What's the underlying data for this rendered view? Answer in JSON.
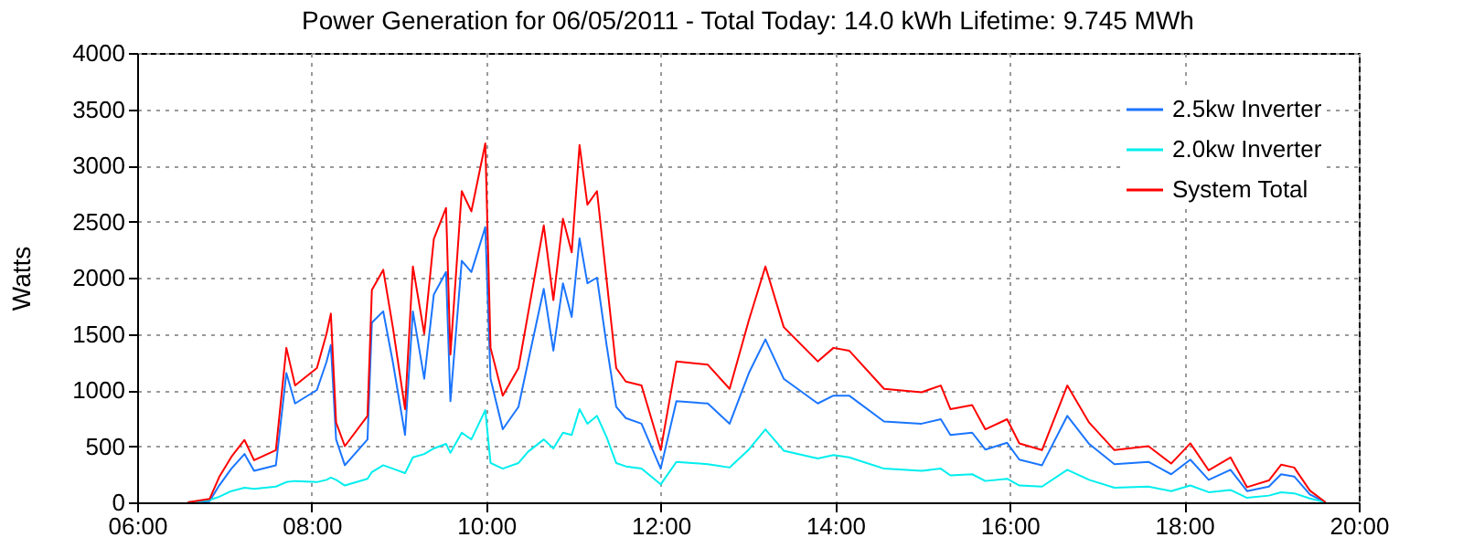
{
  "chart_data": {
    "type": "line",
    "title": "Power Generation for 06/05/2011 - Total Today: 14.0 kWh   Lifetime: 9.745 MWh",
    "ylabel": "Watts",
    "x": [
      6.58,
      6.83,
      6.94,
      7.08,
      7.23,
      7.34,
      7.59,
      7.71,
      7.81,
      8.06,
      8.17,
      8.22,
      8.28,
      8.38,
      8.64,
      8.69,
      8.82,
      8.93,
      9.07,
      9.16,
      9.29,
      9.4,
      9.54,
      9.59,
      9.72,
      9.83,
      9.99,
      10.05,
      10.19,
      10.37,
      10.48,
      10.66,
      10.77,
      10.88,
      10.98,
      11.07,
      11.16,
      11.27,
      11.38,
      11.49,
      11.6,
      11.78,
      12.0,
      12.18,
      12.54,
      12.79,
      13.01,
      13.2,
      13.41,
      13.8,
      13.98,
      14.16,
      14.56,
      14.99,
      15.21,
      15.32,
      15.57,
      15.72,
      15.97,
      16.11,
      16.37,
      16.66,
      16.91,
      17.2,
      17.59,
      17.85,
      18.07,
      18.28,
      18.53,
      18.72,
      18.97,
      19.11,
      19.26,
      19.44,
      19.62
    ],
    "series": [
      {
        "name": "2.5kw Inverter",
        "color": "#1a75ff",
        "values": [
          0,
          10,
          150,
          300,
          430,
          280,
          330,
          1150,
          880,
          1000,
          1250,
          1400,
          560,
          330,
          560,
          1600,
          1700,
          1250,
          600,
          1700,
          1100,
          1850,
          2050,
          900,
          2150,
          2050,
          2450,
          1100,
          650,
          850,
          1250,
          1900,
          1350,
          1950,
          1650,
          2350,
          1950,
          2000,
          1400,
          850,
          750,
          700,
          300,
          900,
          880,
          700,
          1150,
          1450,
          1100,
          880,
          950,
          950,
          720,
          700,
          740,
          600,
          620,
          470,
          530,
          380,
          330,
          770,
          520,
          340,
          360,
          250,
          380,
          200,
          290,
          100,
          140,
          250,
          230,
          70,
          0
        ]
      },
      {
        "name": "2.0kw Inverter",
        "color": "#00eeee",
        "values": [
          0,
          20,
          50,
          100,
          130,
          120,
          140,
          180,
          190,
          180,
          200,
          220,
          200,
          150,
          210,
          270,
          330,
          300,
          260,
          400,
          430,
          480,
          520,
          440,
          620,
          560,
          820,
          350,
          300,
          350,
          450,
          560,
          480,
          620,
          600,
          830,
          700,
          770,
          580,
          350,
          320,
          300,
          160,
          360,
          340,
          310,
          470,
          650,
          460,
          390,
          420,
          400,
          300,
          280,
          300,
          240,
          250,
          190,
          210,
          150,
          140,
          290,
          200,
          130,
          140,
          100,
          150,
          90,
          110,
          40,
          60,
          90,
          80,
          35,
          0
        ]
      },
      {
        "name": "System Total",
        "color": "#ff0000",
        "values": [
          0,
          30,
          225,
          405,
          555,
          375,
          465,
          1375,
          1040,
          1195,
          1500,
          1680,
          710,
          500,
          770,
          1890,
          2070,
          1560,
          830,
          2100,
          1500,
          2345,
          2620,
          1315,
          2770,
          2590,
          3195,
          1375,
          950,
          1195,
          1680,
          2465,
          1800,
          2525,
          2225,
          3180,
          2650,
          2770,
          1980,
          1195,
          1075,
          1040,
          465,
          1255,
          1225,
          1010,
          1620,
          2100,
          1560,
          1255,
          1375,
          1350,
          1010,
          980,
          1040,
          830,
          865,
          650,
          740,
          525,
          465,
          1040,
          710,
          465,
          500,
          345,
          525,
          285,
          400,
          135,
          195,
          335,
          310,
          105,
          0
        ]
      }
    ],
    "xlim": [
      6,
      20
    ],
    "xticks": [
      {
        "value": 6,
        "label": "06:00"
      },
      {
        "value": 8,
        "label": "08:00"
      },
      {
        "value": 10,
        "label": "10:00"
      },
      {
        "value": 12,
        "label": "12:00"
      },
      {
        "value": 14,
        "label": "14:00"
      },
      {
        "value": 16,
        "label": "16:00"
      },
      {
        "value": 18,
        "label": "18:00"
      },
      {
        "value": 20,
        "label": "20:00"
      }
    ],
    "ylim": [
      0,
      4000
    ],
    "yticks": [
      0,
      500,
      1000,
      1500,
      2000,
      2500,
      3000,
      3500,
      4000
    ],
    "grid": true,
    "legend": "top right"
  }
}
